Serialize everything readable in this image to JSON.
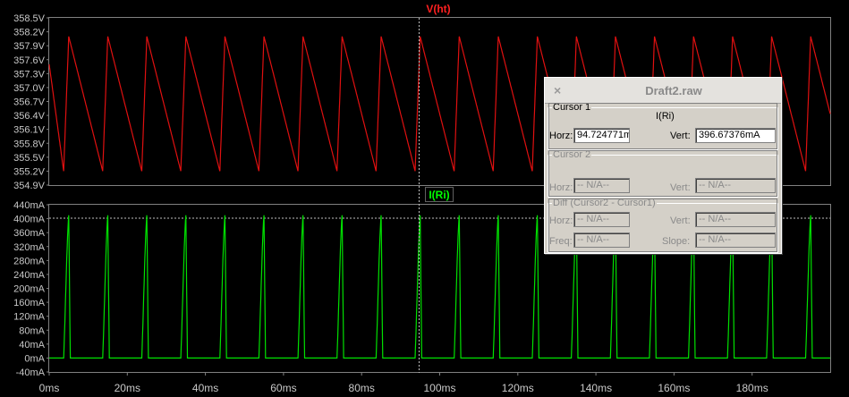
{
  "top_panel": {
    "trace_name": "V(ht)",
    "trace_color": "#ff2020",
    "y_ticks": [
      "358.5V",
      "358.2V",
      "357.9V",
      "357.6V",
      "357.3V",
      "357.0V",
      "356.7V",
      "356.4V",
      "356.1V",
      "355.8V",
      "355.5V",
      "355.2V",
      "354.9V"
    ]
  },
  "bottom_panel": {
    "trace_name": "I(Ri)",
    "trace_color": "#00ff00",
    "y_ticks": [
      "440mA",
      "400mA",
      "360mA",
      "320mA",
      "280mA",
      "240mA",
      "200mA",
      "160mA",
      "120mA",
      "80mA",
      "40mA",
      "0mA",
      "-40mA"
    ]
  },
  "x_ticks": [
    "0ms",
    "20ms",
    "40ms",
    "60ms",
    "80ms",
    "100ms",
    "120ms",
    "140ms",
    "160ms",
    "180ms"
  ],
  "chart_data": [
    {
      "type": "line",
      "x_range_ms": [
        0,
        200
      ],
      "series": [
        {
          "name": "V(ht)",
          "unit": "V",
          "min": 355.2,
          "max": 358.1,
          "waveform": "rectified ripple, period ~10ms"
        }
      ],
      "ylim": [
        354.9,
        358.5
      ]
    },
    {
      "type": "line",
      "x_range_ms": [
        0,
        200
      ],
      "series": [
        {
          "name": "I(Ri)",
          "unit": "mA",
          "min": 0,
          "max": 410,
          "waveform": "charging current pulses, period ~10ms"
        }
      ],
      "ylim": [
        -40,
        440
      ]
    }
  ],
  "cursor": {
    "x_ms": 94.724771
  },
  "dialog": {
    "title": "Draft2.raw",
    "close_glyph": "×",
    "cursor1": {
      "legend": "Cursor 1",
      "trace": "I(Ri)",
      "horz_label": "Horz:",
      "horz_value": "94.724771ms",
      "vert_label": "Vert:",
      "vert_value": "396.67376mA"
    },
    "cursor2": {
      "legend": "Cursor 2",
      "horz_label": "Horz:",
      "horz_value": "-- N/A--",
      "vert_label": "Vert:",
      "vert_value": "-- N/A--"
    },
    "diff": {
      "legend": "Diff (Cursor2 - Cursor1)",
      "horz_label": "Horz:",
      "horz_value": "-- N/A--",
      "vert_label": "Vert:",
      "vert_value": "-- N/A--",
      "freq_label": "Freq:",
      "freq_value": "-- N/A--",
      "slope_label": "Slope:",
      "slope_value": "-- N/A--"
    }
  }
}
